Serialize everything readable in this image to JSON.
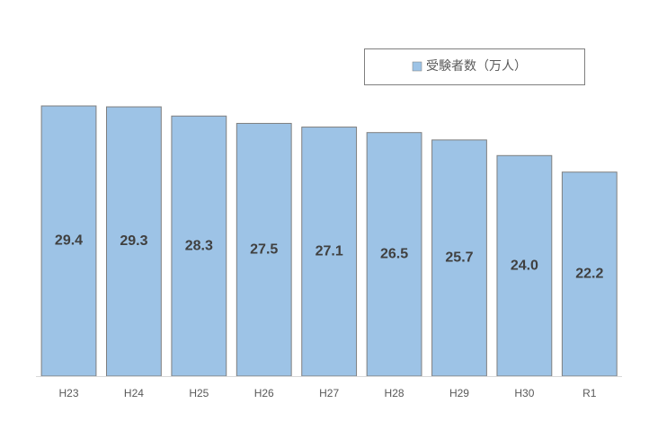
{
  "chart_data": {
    "type": "bar",
    "categories": [
      "H23",
      "H24",
      "H25",
      "H26",
      "H27",
      "H28",
      "H29",
      "H30",
      "R1"
    ],
    "series": [
      {
        "name": "受験者数（万人）",
        "color": "#9dc3e6",
        "values": [
          29.4,
          29.3,
          28.3,
          27.5,
          27.1,
          26.5,
          25.7,
          24.0,
          22.2
        ],
        "value_labels": [
          "29.4",
          "29.3",
          "28.3",
          "27.5",
          "27.1",
          "26.5",
          "25.7",
          "24.0",
          "22.2"
        ]
      }
    ],
    "legend": "top-right"
  }
}
